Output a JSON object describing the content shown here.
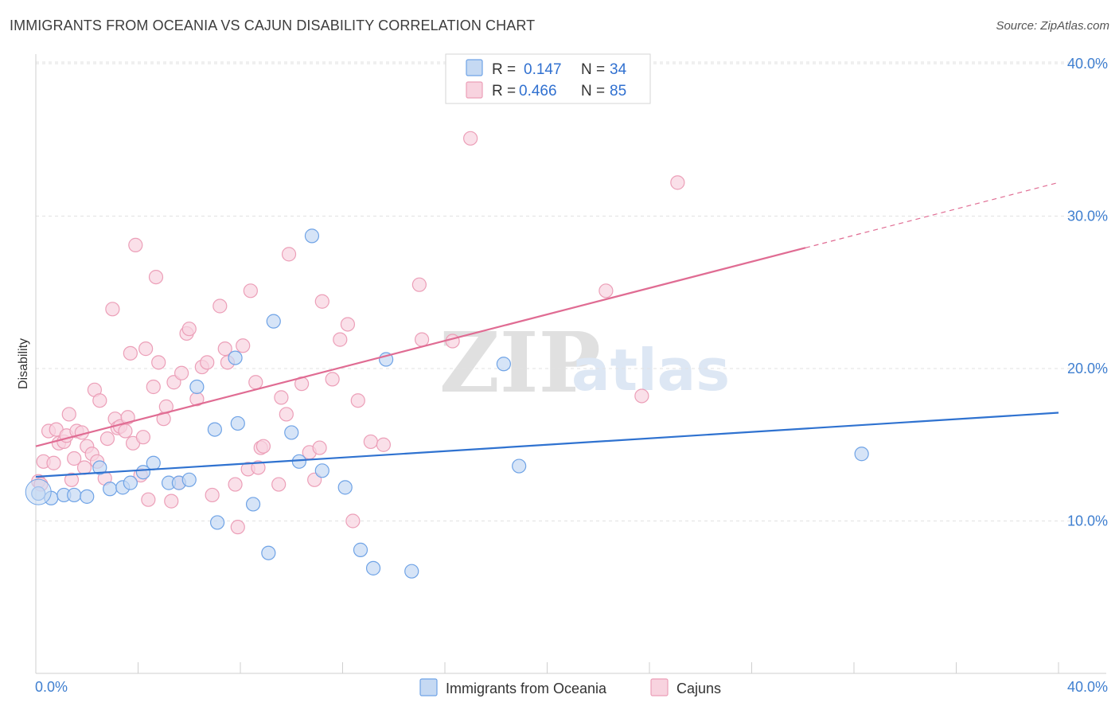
{
  "header": {
    "title": "IMMIGRANTS FROM OCEANIA VS CAJUN DISABILITY CORRELATION CHART",
    "source": "Source: ZipAtlas.com"
  },
  "chart_data": {
    "type": "scatter",
    "title": "IMMIGRANTS FROM OCEANIA VS CAJUN DISABILITY CORRELATION CHART",
    "xlabel": "",
    "ylabel": "Disability",
    "xlim": [
      0,
      40
    ],
    "ylim": [
      0,
      40
    ],
    "x_tick_labels": [
      "0.0%",
      "40.0%"
    ],
    "y_ticks": [
      10,
      20,
      30,
      40
    ],
    "y_tick_labels": [
      "10.0%",
      "20.0%",
      "30.0%",
      "40.0%"
    ],
    "grid": true,
    "legend_position": "top-center",
    "watermark": {
      "zip": "ZIP",
      "atlas": "atlas"
    },
    "legend": [
      {
        "r_label": "R =",
        "r_value": "0.147",
        "n_label": "N =",
        "n_value": "34"
      },
      {
        "r_label": "R =",
        "r_value": "0.466",
        "n_label": "N =",
        "n_value": "85"
      }
    ],
    "series": [
      {
        "name": "Immigrants from Oceania",
        "color": "#6fa3e6",
        "fill": "#c5d9f3",
        "line_color": "#2f72d0",
        "trend": {
          "x0": 0,
          "y0": 12.9,
          "x1": 40,
          "y1": 17.1,
          "dash_from": null
        },
        "points": [
          [
            0.1,
            11.8
          ],
          [
            0.6,
            11.5
          ],
          [
            1.1,
            11.7
          ],
          [
            1.5,
            11.7
          ],
          [
            2.0,
            11.6
          ],
          [
            2.5,
            13.5
          ],
          [
            2.9,
            12.1
          ],
          [
            3.4,
            12.2
          ],
          [
            3.7,
            12.5
          ],
          [
            4.2,
            13.2
          ],
          [
            4.6,
            13.8
          ],
          [
            5.2,
            12.5
          ],
          [
            5.6,
            12.5
          ],
          [
            6.0,
            12.7
          ],
          [
            6.3,
            18.8
          ],
          [
            7.0,
            16.0
          ],
          [
            7.1,
            9.9
          ],
          [
            7.8,
            20.7
          ],
          [
            7.9,
            16.4
          ],
          [
            8.5,
            11.1
          ],
          [
            9.1,
            7.9
          ],
          [
            9.3,
            23.1
          ],
          [
            10.0,
            15.8
          ],
          [
            10.3,
            13.9
          ],
          [
            10.8,
            28.7
          ],
          [
            11.2,
            13.3
          ],
          [
            12.1,
            12.2
          ],
          [
            12.7,
            8.1
          ],
          [
            13.2,
            6.9
          ],
          [
            13.7,
            20.6
          ],
          [
            14.7,
            6.7
          ],
          [
            18.3,
            20.3
          ],
          [
            18.9,
            13.6
          ],
          [
            32.3,
            14.4
          ]
        ]
      },
      {
        "name": "Cajuns",
        "color": "#ec9fb8",
        "fill": "#f8d3df",
        "line_color": "#e06c93",
        "trend": {
          "x0": 0,
          "y0": 14.9,
          "x1": 40,
          "y1": 32.2,
          "dash_from": 30.1
        },
        "points": [
          [
            0.1,
            12.6
          ],
          [
            0.2,
            12.4
          ],
          [
            0.3,
            13.9
          ],
          [
            0.5,
            15.9
          ],
          [
            0.7,
            13.8
          ],
          [
            0.8,
            16.0
          ],
          [
            0.9,
            15.1
          ],
          [
            1.1,
            15.2
          ],
          [
            1.2,
            15.6
          ],
          [
            1.3,
            17.0
          ],
          [
            1.4,
            12.7
          ],
          [
            1.5,
            14.1
          ],
          [
            1.6,
            15.9
          ],
          [
            1.8,
            15.8
          ],
          [
            1.9,
            13.5
          ],
          [
            2.0,
            14.9
          ],
          [
            2.2,
            14.4
          ],
          [
            2.3,
            18.6
          ],
          [
            2.4,
            13.9
          ],
          [
            2.5,
            17.9
          ],
          [
            2.7,
            12.8
          ],
          [
            2.8,
            15.4
          ],
          [
            3.0,
            23.9
          ],
          [
            3.1,
            16.7
          ],
          [
            3.2,
            16.1
          ],
          [
            3.3,
            16.2
          ],
          [
            3.5,
            15.9
          ],
          [
            3.6,
            16.8
          ],
          [
            3.7,
            21.0
          ],
          [
            3.8,
            15.1
          ],
          [
            3.9,
            28.1
          ],
          [
            4.1,
            13.0
          ],
          [
            4.2,
            15.5
          ],
          [
            4.3,
            21.3
          ],
          [
            4.4,
            11.4
          ],
          [
            4.6,
            18.8
          ],
          [
            4.7,
            26.0
          ],
          [
            4.8,
            20.4
          ],
          [
            5.0,
            16.7
          ],
          [
            5.1,
            17.5
          ],
          [
            5.3,
            11.3
          ],
          [
            5.4,
            19.1
          ],
          [
            5.6,
            12.5
          ],
          [
            5.7,
            19.7
          ],
          [
            5.9,
            22.3
          ],
          [
            6.0,
            22.6
          ],
          [
            6.3,
            18.0
          ],
          [
            6.5,
            20.1
          ],
          [
            6.7,
            20.4
          ],
          [
            6.9,
            11.7
          ],
          [
            7.2,
            24.1
          ],
          [
            7.4,
            21.3
          ],
          [
            7.5,
            20.4
          ],
          [
            7.8,
            12.4
          ],
          [
            7.9,
            9.6
          ],
          [
            8.1,
            21.5
          ],
          [
            8.3,
            13.4
          ],
          [
            8.4,
            25.1
          ],
          [
            8.6,
            19.1
          ],
          [
            8.7,
            13.5
          ],
          [
            8.8,
            14.8
          ],
          [
            8.9,
            14.9
          ],
          [
            9.5,
            12.4
          ],
          [
            9.6,
            18.1
          ],
          [
            9.8,
            17.0
          ],
          [
            9.9,
            27.5
          ],
          [
            10.4,
            19.0
          ],
          [
            10.7,
            14.5
          ],
          [
            10.9,
            12.7
          ],
          [
            11.1,
            14.8
          ],
          [
            11.2,
            24.4
          ],
          [
            11.6,
            19.3
          ],
          [
            11.9,
            21.9
          ],
          [
            12.2,
            22.9
          ],
          [
            12.4,
            10.0
          ],
          [
            12.6,
            17.9
          ],
          [
            13.1,
            15.2
          ],
          [
            13.6,
            15.0
          ],
          [
            15.0,
            25.5
          ],
          [
            15.1,
            21.9
          ],
          [
            16.3,
            21.8
          ],
          [
            17.0,
            35.1
          ],
          [
            22.3,
            25.1
          ],
          [
            23.7,
            18.2
          ],
          [
            25.1,
            32.2
          ]
        ]
      }
    ]
  },
  "bottom_legend": {
    "items": [
      {
        "label": "Immigrants from Oceania"
      },
      {
        "label": "Cajuns"
      }
    ]
  }
}
